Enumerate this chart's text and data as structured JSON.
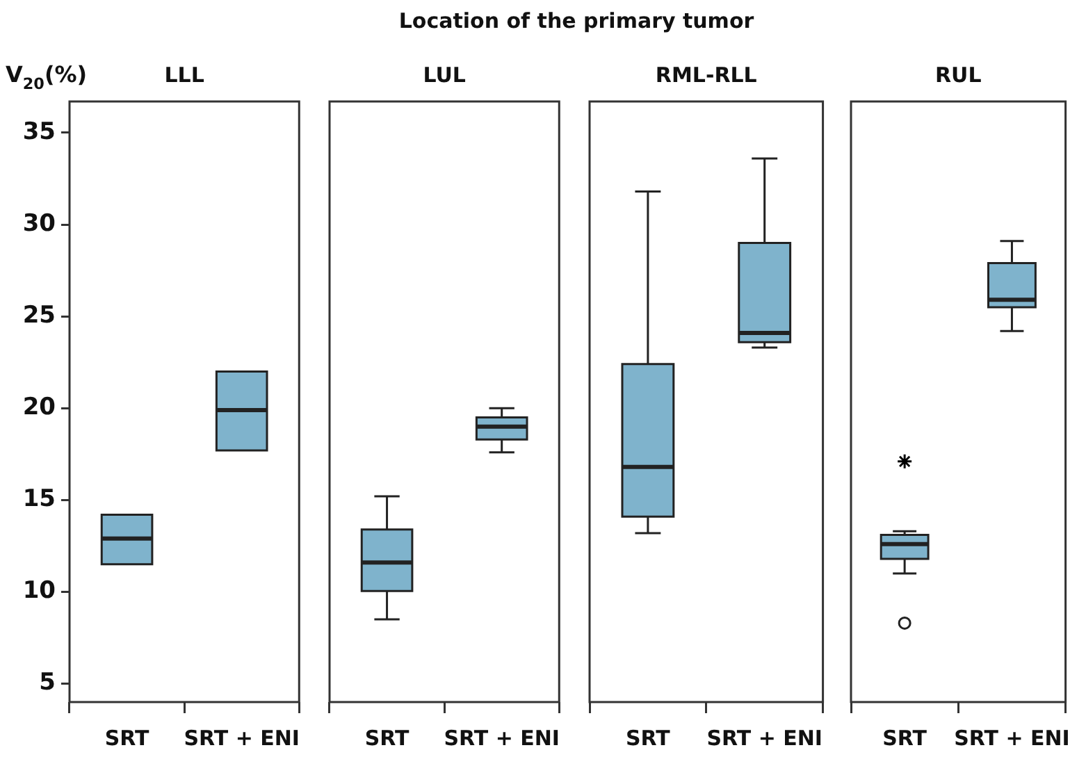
{
  "chart_data": [
    {
      "type": "box",
      "title": "LLL",
      "ylabel": "V$_{20}$(%)",
      "annotations": [
        "Location of the primary tumor"
      ],
      "categories": [
        "SRT",
        "SRT + ENI"
      ],
      "ylim": [
        4,
        36.7
      ],
      "yticks": [
        5,
        10,
        15,
        20,
        25,
        30,
        35
      ],
      "grid": false,
      "series": [
        {
          "color": "#7fb3cc",
          "boxes": [
            {
              "low": 11.5,
              "q1": 11.5,
              "median": 12.9,
              "q3": 14.2,
              "high": 14.2
            },
            {
              "low": 17.7,
              "q1": 17.7,
              "median": 19.9,
              "q3": 22.0,
              "high": 22.0
            }
          ]
        }
      ]
    },
    {
      "type": "box",
      "title": "LUL",
      "categories": [
        "SRT",
        "SRT + ENI"
      ],
      "ylim": [
        4,
        36.7
      ],
      "yticks": [
        5,
        10,
        15,
        20,
        25,
        30,
        35
      ],
      "grid": false,
      "tick_labels": "x",
      "series": [
        {
          "color": "#7fb3cc",
          "boxes": [
            {
              "low": 8.5,
              "q1": 10.05,
              "median": 11.6,
              "q3": 13.4,
              "high": 15.2
            },
            {
              "low": 17.6,
              "q1": 18.3,
              "median": 19.0,
              "q3": 19.5,
              "high": 20.0
            }
          ]
        }
      ]
    },
    {
      "type": "box",
      "title": "RML-RLL",
      "categories": [
        "SRT",
        "SRT + ENI"
      ],
      "ylim": [
        4,
        36.7
      ],
      "yticks": [
        5,
        10,
        15,
        20,
        25,
        30,
        35
      ],
      "grid": false,
      "tick_labels": "x",
      "series": [
        {
          "color": "#7fb3cc",
          "boxes": [
            {
              "low": 13.2,
              "q1": 14.1,
              "median": 16.8,
              "q3": 22.4,
              "high": 31.8
            },
            {
              "low": 23.3,
              "q1": 23.6,
              "median": 24.1,
              "q3": 29.0,
              "high": 33.6
            }
          ]
        }
      ]
    },
    {
      "type": "box",
      "title": "RUL",
      "categories": [
        "SRT",
        "SRT + ENI"
      ],
      "ylim": [
        4,
        36.7
      ],
      "yticks": [
        5,
        10,
        15,
        20,
        25,
        30,
        35
      ],
      "grid": false,
      "tick_labels": "x",
      "series": [
        {
          "color": "#7fb3cc",
          "boxes": [
            {
              "low": 11.0,
              "q1": 11.8,
              "median": 12.6,
              "q3": 13.1,
              "high": 13.3,
              "outliers": [
                8.3
              ]
            },
            {
              "low": 24.2,
              "q1": 25.5,
              "median": 25.9,
              "q3": 27.9,
              "high": 29.1
            }
          ]
        },
        {
          "type": "scatter",
          "x": [
            "SRT"
          ],
          "values": [
            17.1
          ],
          "marker": "cross",
          "color": "#000000"
        }
      ]
    }
  ]
}
